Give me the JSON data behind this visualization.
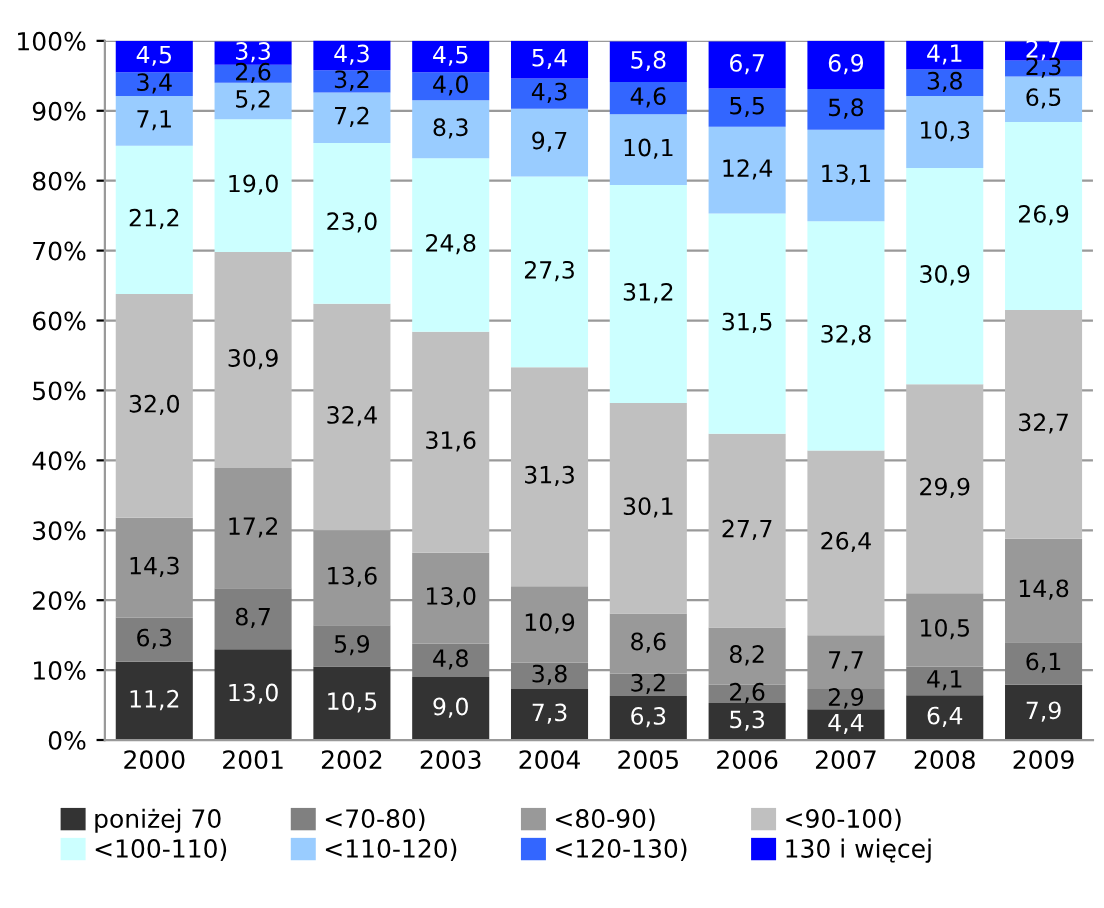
{
  "chart_data": {
    "type": "bar",
    "stacked": true,
    "categories": [
      "2000",
      "2001",
      "2002",
      "2003",
      "2004",
      "2005",
      "2006",
      "2007",
      "2008",
      "2009"
    ],
    "ylim": [
      0,
      100
    ],
    "yticks": [
      {
        "value": 0,
        "label": "0%"
      },
      {
        "value": 10,
        "label": "10%"
      },
      {
        "value": 20,
        "label": "20%"
      },
      {
        "value": 30,
        "label": "30%"
      },
      {
        "value": 40,
        "label": "40%"
      },
      {
        "value": 50,
        "label": "50%"
      },
      {
        "value": 60,
        "label": "60%"
      },
      {
        "value": 70,
        "label": "70%"
      },
      {
        "value": 80,
        "label": "80%"
      },
      {
        "value": 90,
        "label": "90%"
      },
      {
        "value": 100,
        "label": "100%"
      }
    ],
    "grid": "y",
    "legend": "bottom",
    "series": [
      {
        "name": "poniżej 70",
        "color": "#333333",
        "values": [
          11.2,
          13.0,
          10.5,
          9.0,
          7.3,
          6.3,
          5.3,
          4.4,
          6.4,
          7.9
        ],
        "value_labels": [
          "11,2",
          "13,0",
          "10,5",
          "9,0",
          "7,3",
          "6,3",
          "5,3",
          "4,4",
          "6,4",
          "7,9"
        ]
      },
      {
        "name": "<70-80)",
        "color": "#808080",
        "values": [
          6.3,
          8.7,
          5.9,
          4.8,
          3.8,
          3.2,
          2.6,
          2.9,
          4.1,
          6.1
        ],
        "value_labels": [
          "6,3",
          "8,7",
          "5,9",
          "4,8",
          "3,8",
          "3,2",
          "2,6",
          "2,9",
          "4,1",
          "6,1"
        ]
      },
      {
        "name": "<80-90)",
        "color": "#999999",
        "values": [
          14.3,
          17.2,
          13.6,
          13.0,
          10.9,
          8.6,
          8.2,
          7.7,
          10.5,
          14.8
        ],
        "value_labels": [
          "14,3",
          "17,2",
          "13,6",
          "13,0",
          "10,9",
          "8,6",
          "8,2",
          "7,7",
          "10,5",
          "14,8"
        ]
      },
      {
        "name": "<90-100)",
        "color": "#c0c0c0",
        "values": [
          32.0,
          30.9,
          32.4,
          31.6,
          31.3,
          30.1,
          27.7,
          26.4,
          29.9,
          32.7
        ],
        "value_labels": [
          "32,0",
          "30,9",
          "32,4",
          "31,6",
          "31,3",
          "30,1",
          "27,7",
          "26,4",
          "29,9",
          "32,7"
        ]
      },
      {
        "name": "<100-110)",
        "color": "#ccffff",
        "values": [
          21.2,
          19.0,
          23.0,
          24.8,
          27.3,
          31.2,
          31.5,
          32.8,
          30.9,
          26.9
        ],
        "value_labels": [
          "21,2",
          "19,0",
          "23,0",
          "24,8",
          "27,3",
          "31,2",
          "31,5",
          "32,8",
          "30,9",
          "26,9"
        ]
      },
      {
        "name": "<110-120)",
        "color": "#99ccff",
        "values": [
          7.1,
          5.2,
          7.2,
          8.3,
          9.7,
          10.1,
          12.4,
          13.1,
          10.3,
          6.5
        ],
        "value_labels": [
          "7,1",
          "5,2",
          "7,2",
          "8,3",
          "9,7",
          "10,1",
          "12,4",
          "13,1",
          "10,3",
          "6,5"
        ]
      },
      {
        "name": "<120-130)",
        "color": "#3366ff",
        "values": [
          3.4,
          2.6,
          3.2,
          4.0,
          4.3,
          4.6,
          5.5,
          5.8,
          3.8,
          2.3
        ],
        "value_labels": [
          "3,4",
          "2,6",
          "3,2",
          "4,0",
          "4,3",
          "4,6",
          "5,5",
          "5,8",
          "3,8",
          "2,3"
        ]
      },
      {
        "name": "130 i więcej",
        "color": "#0000ff",
        "values": [
          4.5,
          3.3,
          4.3,
          4.5,
          5.4,
          5.8,
          6.7,
          6.9,
          4.1,
          2.7
        ],
        "value_labels": [
          "4,5",
          "3,3",
          "4,3",
          "4,5",
          "5,4",
          "5,8",
          "6,7",
          "6,9",
          "4,1",
          "2,7"
        ]
      }
    ]
  }
}
